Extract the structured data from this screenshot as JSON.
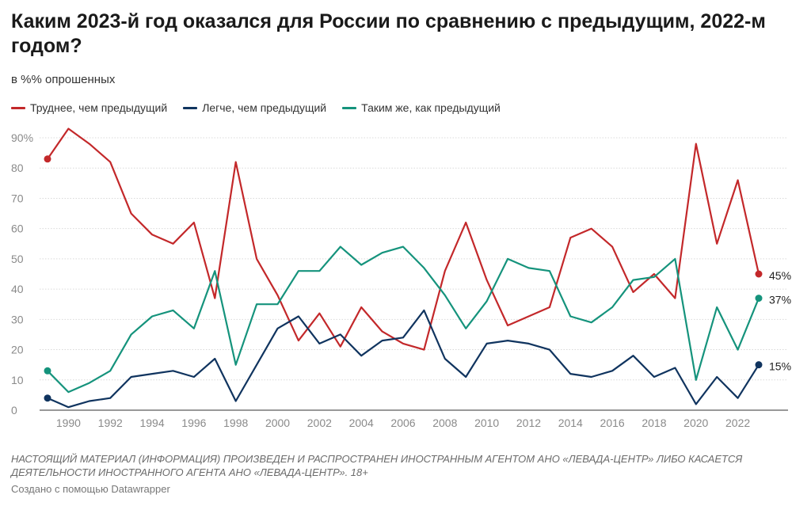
{
  "header": {
    "title": "Каким 2023-й год оказался для России по сравнению с предыдущим, 2022-м годом?",
    "subtitle": "в %% опрошенных"
  },
  "footer": {
    "notes": "НАСТОЯЩИЙ МАТЕРИАЛ (ИНФОРМАЦИЯ) ПРОИЗВЕДЕН И РАСПРОСТРАНЕН ИНОСТРАННЫМ АГЕНТОМ АНО «ЛЕВАДА-ЦЕНТР» ЛИБО КАСАЕТСЯ ДЕЯТЕЛЬНОСТИ ИНОСТРАННОГО АГЕНТА АНО «ЛЕВАДА-ЦЕНТР». 18+",
    "credit": "Создано с помощью Datawrapper"
  },
  "chart_data": {
    "type": "line",
    "title": "Каким 2023-й год оказался для России по сравнению с предыдущим, 2022-м годом?",
    "subtitle": "в %% опрошенных",
    "xlabel": "",
    "ylabel": "",
    "ylim": [
      0,
      90
    ],
    "yticks": [
      "0",
      "10",
      "20",
      "30",
      "40",
      "50",
      "60",
      "70",
      "80",
      "90%"
    ],
    "xticks": [
      "1990",
      "1992",
      "1994",
      "1996",
      "1998",
      "2000",
      "2002",
      "2004",
      "2006",
      "2008",
      "2010",
      "2012",
      "2014",
      "2016",
      "2018",
      "2020",
      "2022"
    ],
    "grid": true,
    "legend_position": "top-left",
    "x": [
      1989,
      1990,
      1991,
      1992,
      1993,
      1994,
      1995,
      1996,
      1997,
      1998,
      1999,
      2000,
      2001,
      2002,
      2003,
      2004,
      2005,
      2006,
      2007,
      2008,
      2009,
      2010,
      2011,
      2012,
      2013,
      2014,
      2015,
      2016,
      2017,
      2018,
      2019,
      2020,
      2021,
      2022,
      2023
    ],
    "series": [
      {
        "name": "Труднее, чем предыдущий",
        "color": "#c3282a",
        "end_label": "45%",
        "values": [
          83,
          93,
          88,
          82,
          65,
          58,
          55,
          62,
          37,
          82,
          50,
          38,
          23,
          32,
          21,
          34,
          26,
          22,
          20,
          46,
          62,
          43,
          28,
          31,
          34,
          57,
          60,
          54,
          39,
          45,
          37,
          88,
          55,
          76,
          45
        ]
      },
      {
        "name": "Легче, чем предыдущий",
        "color": "#10345f",
        "end_label": "15%",
        "values": [
          4,
          1,
          3,
          4,
          11,
          12,
          13,
          11,
          17,
          3,
          15,
          27,
          31,
          22,
          25,
          18,
          23,
          24,
          33,
          17,
          11,
          22,
          23,
          22,
          20,
          12,
          11,
          13,
          18,
          11,
          14,
          2,
          11,
          4,
          15
        ]
      },
      {
        "name": "Таким  же, как предыдущий",
        "color": "#15937c",
        "end_label": "37%",
        "values": [
          13,
          6,
          9,
          13,
          25,
          31,
          33,
          27,
          46,
          15,
          35,
          35,
          46,
          46,
          54,
          48,
          52,
          54,
          47,
          38,
          27,
          36,
          50,
          47,
          46,
          31,
          29,
          34,
          43,
          44,
          50,
          10,
          34,
          20,
          37
        ]
      }
    ]
  }
}
